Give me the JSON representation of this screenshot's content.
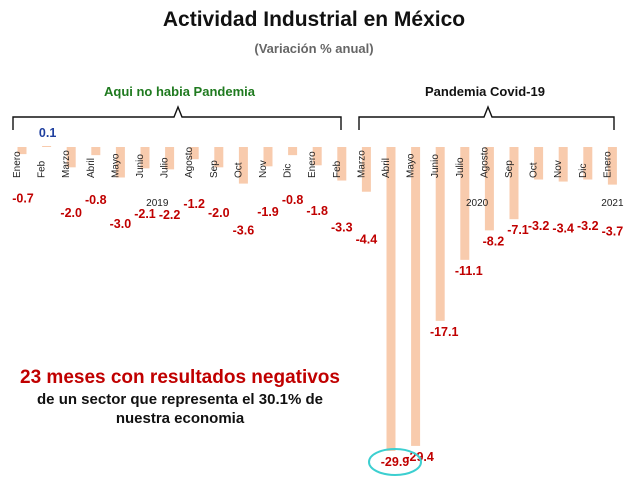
{
  "header": {
    "title": "Actividad Industrial en México",
    "subtitle": "(Variación % anual)"
  },
  "periods": [
    {
      "label": "Aqui no habia Pandemia",
      "color": "#1f7a1f"
    },
    {
      "label": "Pandemia Covid-19",
      "color": "#111111"
    }
  ],
  "note": {
    "headline": "23 meses con resultados negativos",
    "body_line1": "de un sector que representa el 30.1% de",
    "body_line2": "nuestra economia"
  },
  "colors": {
    "bar": "#f8cbad",
    "negative_label": "#c00000",
    "positive_label": "#1f3f9f",
    "highlight_ring": "#3ccfd0"
  },
  "chart_data": {
    "type": "bar",
    "categories": [
      "Enero",
      "Feb",
      "Marzo",
      "Abril",
      "Mayo",
      "Junio",
      "Julio",
      "Agosto",
      "Sep",
      "Oct",
      "Nov",
      "Dic",
      "Enero",
      "Feb",
      "Marzo",
      "Abril",
      "Mayo",
      "Junio",
      "Julio",
      "Agosto",
      "Sep",
      "Oct",
      "Nov",
      "Dic",
      "Enero"
    ],
    "values": [
      -0.7,
      0.1,
      -2.0,
      -0.8,
      -3.0,
      -2.1,
      -2.2,
      -1.2,
      -2.0,
      -3.6,
      -1.9,
      -0.8,
      -1.8,
      -3.3,
      -4.4,
      -29.9,
      -29.4,
      -17.1,
      -11.1,
      -8.2,
      -7.1,
      -3.2,
      -3.4,
      -3.2,
      -3.7
    ],
    "value_labels": [
      "-0.7",
      "0.1",
      "-2.0",
      "-0.8",
      "-3.0",
      "-2.1",
      "-2.2",
      "-1.2",
      "-2.0",
      "-3.6",
      "-1.9",
      "-0.8",
      "-1.8",
      "-3.3",
      "-4.4",
      "-29.9",
      "-29.4",
      "-17.1",
      "-11.1",
      "-8.2",
      "-7.1",
      "-3.2",
      "-3.4",
      "-3.2",
      "-3.7"
    ],
    "year_labels": [
      {
        "label": "2019",
        "at_index": 5.5
      },
      {
        "label": "2020",
        "at_index": 18.5
      },
      {
        "label": "2021",
        "at_index": 24
      }
    ],
    "highlight_index": 15,
    "ylim": [
      -30,
      0.5
    ]
  }
}
